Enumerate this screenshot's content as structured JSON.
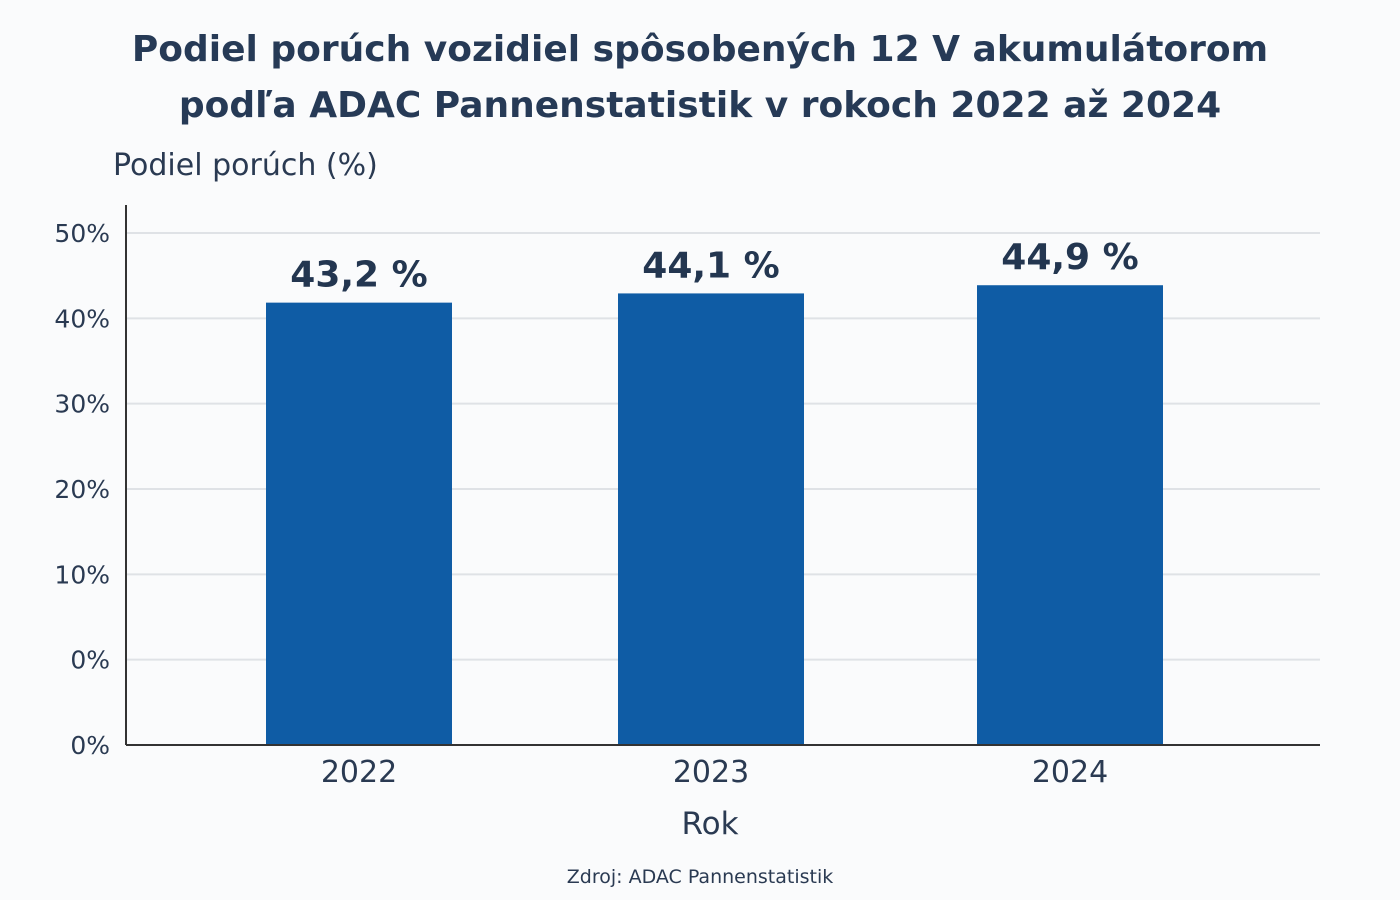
{
  "chart_data": {
    "type": "bar",
    "title": "Podiel porúch vozidiel spôsobených 12 V akumulátorom podľa ADAC Pannenstatistik v rokoch 2022 až 2024",
    "title_lines": [
      "Podiel porúch vozidiel spôsobených 12 V akumulátorom",
      "podľa ADAC Pannenstatistik v rokoch 2022 až 2024"
    ],
    "ylabel": "Podiel porúch (%)",
    "xlabel": "Rok",
    "categories": [
      "2022",
      "2023",
      "2024"
    ],
    "values": [
      43.2,
      44.1,
      44.9
    ],
    "data_labels": [
      "43,2 %",
      "44,1 %",
      "44,9 %"
    ],
    "y_tick_labels": [
      "50%",
      "40%",
      "30%",
      "20%",
      "10%",
      "0%",
      "0%"
    ],
    "ylim": [
      0,
      50
    ],
    "grid": true,
    "bar_color": "#0f5ca5",
    "source": "Zdroj: ADAC Pannenstatistik"
  }
}
